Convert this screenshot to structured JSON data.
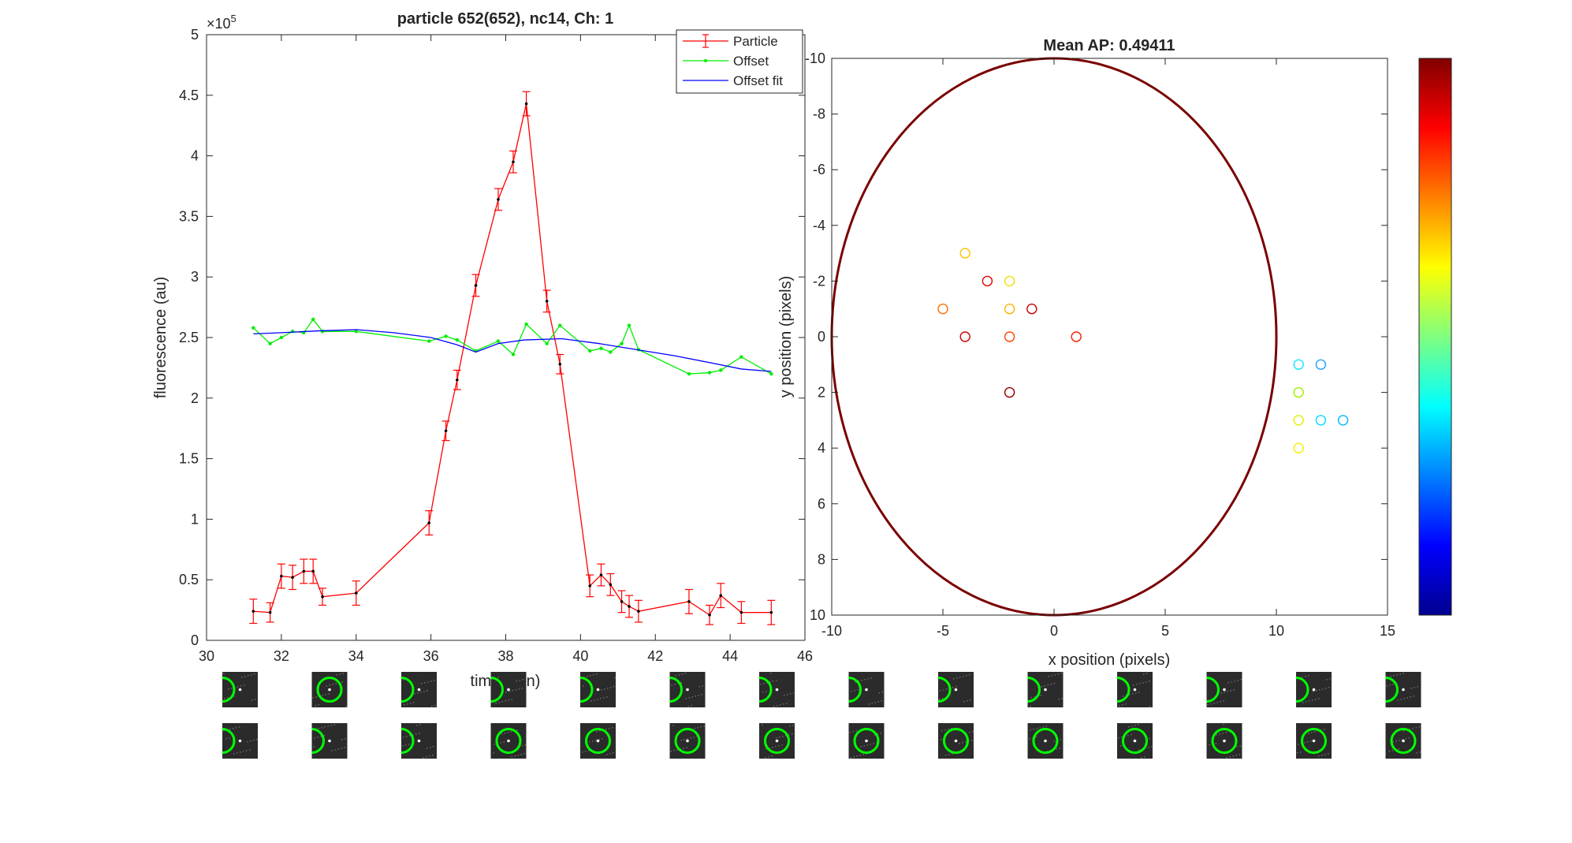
{
  "chart_data": [
    {
      "type": "line",
      "title": "particle 652(652), nc14, Ch: 1",
      "xlabel": "time (min)",
      "ylabel": "fluorescence (au)",
      "y_exponent_label": "×10",
      "y_exponent": "5",
      "xlim": [
        30,
        46
      ],
      "ylim": [
        0,
        5
      ],
      "xticks": [
        "30",
        "32",
        "34",
        "36",
        "38",
        "40",
        "42",
        "44",
        "46"
      ],
      "yticks": [
        "0",
        "0.5",
        "1",
        "1.5",
        "2",
        "2.5",
        "3",
        "3.5",
        "4",
        "4.5",
        "5"
      ],
      "legend_position": "top-right",
      "series": [
        {
          "name": "Particle",
          "color": "#ff0000",
          "style": "errorbar",
          "x": [
            31.25,
            31.7,
            32.0,
            32.3,
            32.6,
            32.85,
            33.1,
            34.0,
            35.95,
            36.4,
            36.7,
            37.2,
            37.8,
            38.2,
            38.55,
            39.1,
            39.45,
            40.25,
            40.55,
            40.8,
            41.1,
            41.3,
            41.55,
            42.9,
            43.45,
            43.75,
            44.3,
            45.1
          ],
          "y": [
            0.24,
            0.23,
            0.53,
            0.52,
            0.57,
            0.57,
            0.36,
            0.39,
            0.97,
            1.73,
            2.15,
            2.93,
            3.64,
            3.95,
            4.43,
            2.8,
            2.28,
            0.45,
            0.54,
            0.46,
            0.32,
            0.28,
            0.24,
            0.32,
            0.21,
            0.37,
            0.23,
            0.23
          ],
          "err": [
            0.1,
            0.08,
            0.1,
            0.1,
            0.1,
            0.1,
            0.07,
            0.1,
            0.1,
            0.08,
            0.08,
            0.09,
            0.09,
            0.09,
            0.1,
            0.09,
            0.08,
            0.09,
            0.09,
            0.09,
            0.09,
            0.09,
            0.09,
            0.1,
            0.08,
            0.1,
            0.09,
            0.1
          ]
        },
        {
          "name": "Offset",
          "color": "#00ee00",
          "style": "dots",
          "x": [
            31.25,
            31.7,
            32.0,
            32.3,
            32.6,
            32.85,
            33.1,
            34.0,
            35.95,
            36.4,
            36.7,
            37.2,
            37.8,
            38.2,
            38.55,
            39.1,
            39.45,
            40.25,
            40.55,
            40.8,
            41.1,
            41.3,
            41.55,
            42.9,
            43.45,
            43.75,
            44.3,
            45.1
          ],
          "y": [
            2.58,
            2.45,
            2.5,
            2.55,
            2.54,
            2.65,
            2.55,
            2.55,
            2.47,
            2.51,
            2.48,
            2.39,
            2.47,
            2.36,
            2.61,
            2.45,
            2.6,
            2.39,
            2.41,
            2.38,
            2.45,
            2.6,
            2.4,
            2.2,
            2.21,
            2.23,
            2.34,
            2.2
          ]
        },
        {
          "name": "Offset fit",
          "color": "#0000ff",
          "style": "line",
          "x": [
            31.25,
            32.0,
            33.0,
            34.0,
            35.0,
            36.0,
            36.7,
            37.2,
            37.8,
            38.5,
            39.5,
            40.5,
            41.5,
            42.5,
            43.5,
            44.3,
            45.1
          ],
          "y": [
            2.53,
            2.54,
            2.555,
            2.565,
            2.54,
            2.5,
            2.44,
            2.38,
            2.45,
            2.48,
            2.49,
            2.45,
            2.4,
            2.35,
            2.29,
            2.24,
            2.22
          ]
        }
      ]
    },
    {
      "type": "scatter",
      "title": "Mean AP: 0.49411",
      "xlabel": "x position (pixels)",
      "ylabel": "y position (pixels)",
      "xlim": [
        -10,
        15
      ],
      "ylim": [
        -10,
        10
      ],
      "y_reversed": true,
      "xticks": [
        "-10",
        "-5",
        "0",
        "5",
        "10",
        "15"
      ],
      "yticks": [
        "-10",
        "-8",
        "-6",
        "-4",
        "-2",
        "0",
        "2",
        "4",
        "6",
        "8",
        "10"
      ],
      "ellipse": {
        "cx": 0,
        "cy": 0,
        "rx": 10,
        "ry": 10,
        "color": "#7a0000"
      },
      "colorbar": {
        "colormap": "jet",
        "ticks": []
      },
      "points": [
        {
          "x": -4,
          "y": -3,
          "color": "#ffc000"
        },
        {
          "x": -3,
          "y": -2,
          "color": "#e00000"
        },
        {
          "x": -2,
          "y": -2,
          "color": "#f0e000"
        },
        {
          "x": -5,
          "y": -1,
          "color": "#ff7000"
        },
        {
          "x": -2,
          "y": -1,
          "color": "#ffb000"
        },
        {
          "x": -1,
          "y": -1,
          "color": "#c00000"
        },
        {
          "x": -4,
          "y": 0,
          "color": "#d00000"
        },
        {
          "x": -2,
          "y": 0,
          "color": "#ff4000"
        },
        {
          "x": 1,
          "y": 0,
          "color": "#f02000"
        },
        {
          "x": -2,
          "y": 2,
          "color": "#900000"
        },
        {
          "x": 11,
          "y": 1,
          "color": "#10e8ff"
        },
        {
          "x": 12,
          "y": 1,
          "color": "#20a0ff"
        },
        {
          "x": 11,
          "y": 2,
          "color": "#a0f000"
        },
        {
          "x": 11,
          "y": 3,
          "color": "#e0f000"
        },
        {
          "x": 12,
          "y": 3,
          "color": "#00d8ff"
        },
        {
          "x": 13,
          "y": 3,
          "color": "#00b8ff"
        },
        {
          "x": 11,
          "y": 4,
          "color": "#f0f000"
        }
      ]
    }
  ],
  "thumbnails": {
    "rows": [
      [
        {
          "circle": "left",
          "spot": "center"
        },
        {
          "circle": "center",
          "spot": "center"
        },
        {
          "circle": "left",
          "spot": "center"
        },
        {
          "circle": "left",
          "spot": "center"
        },
        {
          "circle": "left",
          "spot": "center"
        },
        {
          "circle": "left",
          "spot": "center"
        },
        {
          "circle": "left",
          "spot": "center"
        },
        {
          "circle": "left",
          "spot": "center"
        },
        {
          "circle": "left",
          "spot": "center"
        },
        {
          "circle": "left",
          "spot": "center"
        },
        {
          "circle": "left",
          "spot": "center"
        },
        {
          "circle": "left",
          "spot": "center"
        },
        {
          "circle": "left",
          "spot": "center"
        },
        {
          "circle": "left",
          "spot": "center"
        }
      ],
      [
        {
          "circle": "left",
          "spot": "center"
        },
        {
          "circle": "left",
          "spot": "center"
        },
        {
          "circle": "left",
          "spot": "center"
        },
        {
          "circle": "center",
          "spot": "center"
        },
        {
          "circle": "center",
          "spot": "center"
        },
        {
          "circle": "center",
          "spot": "center"
        },
        {
          "circle": "center",
          "spot": "center"
        },
        {
          "circle": "center",
          "spot": "center"
        },
        {
          "circle": "center",
          "spot": "center"
        },
        {
          "circle": "center",
          "spot": "center"
        },
        {
          "circle": "center",
          "spot": "center"
        },
        {
          "circle": "center",
          "spot": "center"
        },
        {
          "circle": "center",
          "spot": "center"
        },
        {
          "circle": "center",
          "spot": "center"
        }
      ]
    ],
    "circle_color": "#00ff00"
  }
}
